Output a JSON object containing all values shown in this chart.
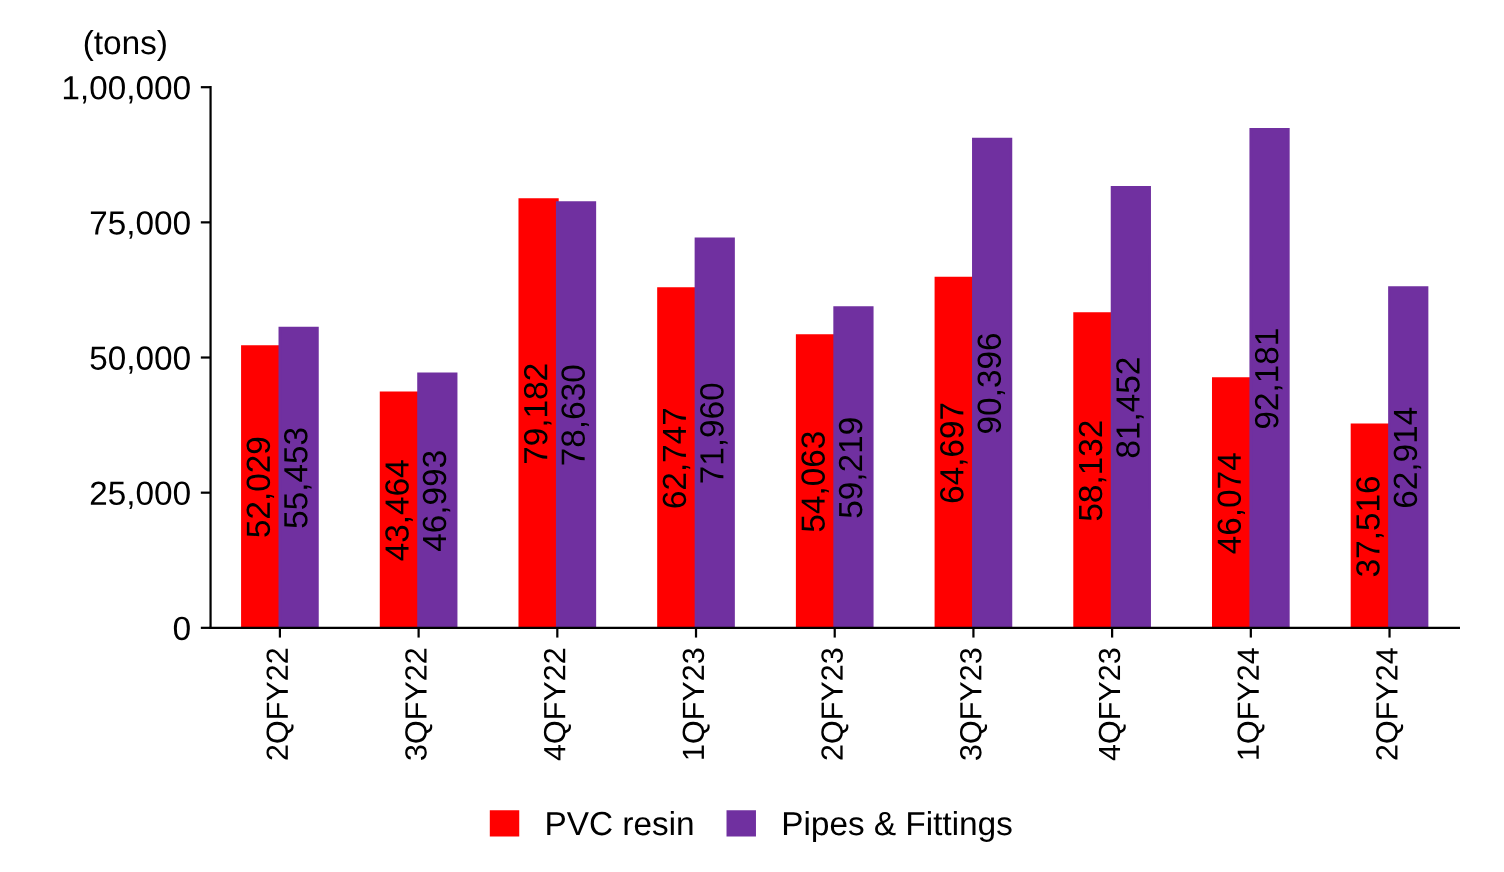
{
  "chart_data": {
    "type": "bar",
    "ylabel": "(tons)",
    "categories": [
      "2QFY22",
      "3QFY22",
      "4QFY22",
      "1QFY23",
      "2QFY23",
      "3QFY23",
      "4QFY23",
      "1QFY24",
      "2QFY24"
    ],
    "series": [
      {
        "name": "PVC resin",
        "color": "#ff0000",
        "values": [
          52029,
          43464,
          79182,
          62747,
          54063,
          64697,
          58132,
          46074,
          37516
        ],
        "value_labels": [
          "52,029",
          "43,464",
          "79,182",
          "62,747",
          "54,063",
          "64,697",
          "58,132",
          "46,074",
          "37,516"
        ]
      },
      {
        "name": "Pipes & Fittings",
        "color": "#7030a0",
        "values": [
          55453,
          46993,
          78630,
          71960,
          59219,
          90396,
          81452,
          92181,
          62914
        ],
        "value_labels": [
          "55,453",
          "46,993",
          "78,630",
          "71,960",
          "59,219",
          "90,396",
          "81,452",
          "92,181",
          "62,914"
        ]
      }
    ],
    "ylim": [
      0,
      100000
    ],
    "yticks": [
      {
        "value": 0,
        "label": "0"
      },
      {
        "value": 25000,
        "label": "25,000"
      },
      {
        "value": 50000,
        "label": "50,000"
      },
      {
        "value": 75000,
        "label": "75,000"
      },
      {
        "value": 100000,
        "label": "1,00,000"
      }
    ],
    "grid": false,
    "legend": "bottom"
  }
}
